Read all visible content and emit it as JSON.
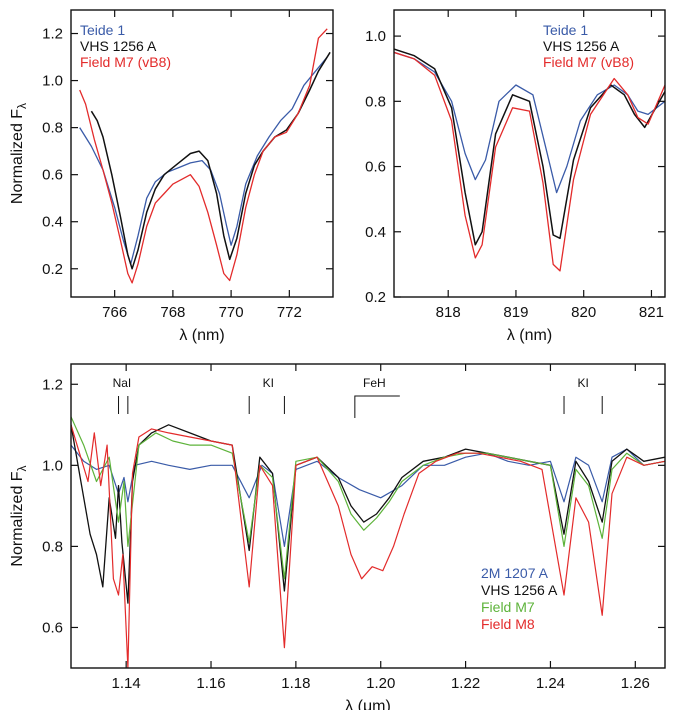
{
  "colors": {
    "teide": "#3a5ba8",
    "vhs": "#111111",
    "fieldM7_red": "#e32b2b",
    "twoM": "#3a5ba8",
    "fieldM7_green": "#5db33a",
    "fieldM8": "#e32b2b"
  },
  "chart_data": [
    {
      "type": "line",
      "panel": "top-left",
      "xlabel_prefix": "λ",
      "xlabel_unit": "(nm)",
      "ylabel_text": "Normalized F",
      "ylabel_sub": "λ",
      "xlim": [
        764.5,
        773.5
      ],
      "ylim": [
        0.08,
        1.3
      ],
      "xticks": [
        766,
        768,
        770,
        772
      ],
      "yticks": [
        0.2,
        0.4,
        0.6,
        0.8,
        1.0,
        1.2
      ],
      "xtick_labels": [
        "766",
        "768",
        "770",
        "772"
      ],
      "ytick_labels": [
        "0.2",
        "0.4",
        "0.6",
        "0.8",
        "1.0",
        "1.2"
      ],
      "legend_position": "top-left",
      "series": [
        {
          "name": "Teide 1",
          "color_key": "teide",
          "width": 1.3,
          "x": [
            764.8,
            765.2,
            765.6,
            766.0,
            766.3,
            766.55,
            766.8,
            767.1,
            767.4,
            767.8,
            768.2,
            768.6,
            769.0,
            769.3,
            769.6,
            769.85,
            770.0,
            770.2,
            770.5,
            770.9,
            771.3,
            771.7,
            772.1,
            772.5,
            772.9,
            773.3
          ],
          "y": [
            0.8,
            0.72,
            0.62,
            0.46,
            0.32,
            0.22,
            0.34,
            0.5,
            0.57,
            0.61,
            0.63,
            0.65,
            0.66,
            0.62,
            0.52,
            0.38,
            0.3,
            0.38,
            0.56,
            0.68,
            0.76,
            0.83,
            0.88,
            0.98,
            1.04,
            1.1
          ]
        },
        {
          "name": "VHS 1256 A",
          "color_key": "vhs",
          "width": 1.5,
          "x": [
            765.2,
            765.4,
            765.6,
            765.9,
            766.2,
            766.45,
            766.6,
            766.8,
            767.1,
            767.4,
            767.7,
            768.0,
            768.3,
            768.6,
            768.9,
            769.2,
            769.5,
            769.75,
            769.95,
            770.2,
            770.5,
            770.8,
            771.1,
            771.5,
            771.9,
            772.3,
            772.7,
            773.0,
            773.4
          ],
          "y": [
            0.87,
            0.83,
            0.76,
            0.6,
            0.42,
            0.26,
            0.2,
            0.28,
            0.44,
            0.54,
            0.6,
            0.63,
            0.66,
            0.69,
            0.7,
            0.66,
            0.52,
            0.34,
            0.24,
            0.33,
            0.52,
            0.64,
            0.7,
            0.76,
            0.79,
            0.86,
            0.96,
            1.04,
            1.12
          ]
        },
        {
          "name": "Field M7 (vB8)",
          "color_key": "fieldM7_red",
          "width": 1.3,
          "x": [
            764.8,
            765.0,
            765.3,
            765.6,
            765.9,
            766.2,
            766.45,
            766.6,
            766.8,
            767.1,
            767.4,
            767.7,
            768.0,
            768.3,
            768.6,
            768.9,
            769.2,
            769.5,
            769.75,
            769.95,
            770.2,
            770.5,
            770.8,
            771.1,
            771.5,
            771.9,
            772.3,
            772.7,
            773.0,
            773.3
          ],
          "y": [
            0.96,
            0.9,
            0.75,
            0.62,
            0.48,
            0.32,
            0.18,
            0.14,
            0.22,
            0.38,
            0.48,
            0.52,
            0.56,
            0.58,
            0.6,
            0.55,
            0.44,
            0.3,
            0.18,
            0.15,
            0.26,
            0.46,
            0.6,
            0.7,
            0.76,
            0.78,
            0.86,
            0.98,
            1.18,
            1.22
          ]
        }
      ]
    },
    {
      "type": "line",
      "panel": "top-right",
      "xlabel_prefix": "λ",
      "xlabel_unit": "(nm)",
      "xlim": [
        817.2,
        821.2
      ],
      "ylim": [
        0.2,
        1.08
      ],
      "xticks": [
        818,
        819,
        820,
        821
      ],
      "yticks": [
        0.2,
        0.4,
        0.6,
        0.8,
        1.0
      ],
      "xtick_labels": [
        "818",
        "819",
        "820",
        "821"
      ],
      "ytick_labels": [
        "0.2",
        "0.4",
        "0.6",
        "0.8",
        "1.0"
      ],
      "legend_position": "top-right",
      "series": [
        {
          "name": "Teide 1",
          "color_key": "teide",
          "width": 1.3,
          "x": [
            817.2,
            817.5,
            817.8,
            818.05,
            818.25,
            818.4,
            818.55,
            818.75,
            819.0,
            819.25,
            819.45,
            819.6,
            819.75,
            819.95,
            820.2,
            820.45,
            820.65,
            820.8,
            820.95,
            821.2
          ],
          "y": [
            0.95,
            0.93,
            0.89,
            0.8,
            0.64,
            0.56,
            0.62,
            0.8,
            0.85,
            0.82,
            0.65,
            0.52,
            0.6,
            0.74,
            0.82,
            0.85,
            0.82,
            0.77,
            0.76,
            0.8
          ]
        },
        {
          "name": "VHS 1256 A",
          "color_key": "vhs",
          "width": 1.5,
          "x": [
            817.2,
            817.5,
            817.8,
            818.05,
            818.25,
            818.4,
            818.5,
            818.7,
            818.95,
            819.2,
            819.4,
            819.55,
            819.65,
            819.85,
            820.1,
            820.4,
            820.6,
            820.75,
            820.9,
            821.2
          ],
          "y": [
            0.96,
            0.94,
            0.9,
            0.78,
            0.52,
            0.36,
            0.4,
            0.7,
            0.82,
            0.8,
            0.6,
            0.39,
            0.38,
            0.62,
            0.78,
            0.85,
            0.82,
            0.76,
            0.72,
            0.83
          ]
        },
        {
          "name": "Field M7 (vB8)",
          "color_key": "fieldM7_red",
          "width": 1.3,
          "x": [
            817.2,
            817.5,
            817.8,
            818.05,
            818.25,
            818.4,
            818.5,
            818.7,
            818.95,
            819.2,
            819.4,
            819.55,
            819.65,
            819.85,
            820.1,
            820.45,
            820.65,
            820.8,
            820.95,
            821.2
          ],
          "y": [
            0.95,
            0.93,
            0.88,
            0.74,
            0.45,
            0.32,
            0.36,
            0.66,
            0.78,
            0.77,
            0.55,
            0.3,
            0.28,
            0.56,
            0.76,
            0.87,
            0.82,
            0.75,
            0.73,
            0.85
          ]
        }
      ]
    },
    {
      "type": "line",
      "panel": "bottom",
      "xlabel_prefix": "λ",
      "xlabel_unit": "(μm)",
      "ylabel_text": "Normalized F",
      "ylabel_sub": "λ",
      "xlim": [
        1.127,
        1.267
      ],
      "ylim": [
        0.5,
        1.25
      ],
      "xticks": [
        1.14,
        1.16,
        1.18,
        1.2,
        1.22,
        1.24,
        1.26
      ],
      "yticks": [
        0.6,
        0.8,
        1.0,
        1.2
      ],
      "xtick_labels": [
        "1.14",
        "1.16",
        "1.18",
        "1.20",
        "1.22",
        "1.24",
        "1.26"
      ],
      "ytick_labels": [
        "0.6",
        "0.8",
        "1.0",
        "1.2"
      ],
      "legend_position": "bottom-right",
      "annotations": [
        {
          "text": "NaI",
          "x": 1.139,
          "ticks": [
            1.1382,
            1.1404
          ]
        },
        {
          "text": "KI",
          "x": 1.1735,
          "ticks": [
            1.169,
            1.1773
          ]
        },
        {
          "text": "FeH",
          "x": 1.1985,
          "bracket": [
            1.1939,
            1.2045
          ]
        },
        {
          "text": "KI",
          "x": 1.2477,
          "ticks": [
            1.2432,
            1.2522
          ]
        }
      ],
      "series": [
        {
          "name": "2M 1207 A",
          "color_key": "twoM",
          "width": 1.2,
          "x": [
            1.127,
            1.13,
            1.133,
            1.136,
            1.1382,
            1.1395,
            1.1404,
            1.142,
            1.146,
            1.15,
            1.155,
            1.16,
            1.165,
            1.169,
            1.172,
            1.1745,
            1.1773,
            1.18,
            1.185,
            1.19,
            1.195,
            1.2,
            1.205,
            1.21,
            1.215,
            1.22,
            1.225,
            1.23,
            1.235,
            1.24,
            1.2432,
            1.246,
            1.249,
            1.2522,
            1.2545,
            1.258,
            1.262,
            1.267
          ],
          "y": [
            1.05,
            1.01,
            0.99,
            1.0,
            0.93,
            0.97,
            0.91,
            1.0,
            1.01,
            1.0,
            0.99,
            1.0,
            1.0,
            0.92,
            1.0,
            0.98,
            0.8,
            0.99,
            1.01,
            0.97,
            0.94,
            0.92,
            0.95,
            1.0,
            1.0,
            1.02,
            1.03,
            1.01,
            1.0,
            1.01,
            0.91,
            1.02,
            1.0,
            0.91,
            1.02,
            1.04,
            1.0,
            1.01
          ]
        },
        {
          "name": "VHS 1256 A",
          "color_key": "vhs",
          "width": 1.3,
          "x": [
            1.127,
            1.1295,
            1.1315,
            1.133,
            1.1345,
            1.136,
            1.1375,
            1.1382,
            1.139,
            1.1404,
            1.1415,
            1.143,
            1.146,
            1.15,
            1.155,
            1.16,
            1.165,
            1.169,
            1.1715,
            1.1745,
            1.1773,
            1.18,
            1.185,
            1.19,
            1.193,
            1.196,
            1.199,
            1.202,
            1.205,
            1.21,
            1.215,
            1.22,
            1.225,
            1.23,
            1.235,
            1.24,
            1.2432,
            1.246,
            1.249,
            1.2522,
            1.2545,
            1.258,
            1.262,
            1.267
          ],
          "y": [
            1.1,
            0.95,
            0.83,
            0.78,
            0.7,
            0.92,
            0.82,
            0.95,
            0.81,
            0.66,
            0.96,
            1.05,
            1.08,
            1.1,
            1.08,
            1.06,
            1.05,
            0.79,
            1.02,
            0.98,
            0.69,
            1.0,
            1.02,
            0.97,
            0.9,
            0.86,
            0.88,
            0.92,
            0.97,
            1.01,
            1.02,
            1.04,
            1.03,
            1.02,
            1.01,
            1.0,
            0.83,
            1.01,
            0.96,
            0.86,
            1.01,
            1.04,
            1.01,
            1.02
          ]
        },
        {
          "name": "Field M7",
          "color_key": "fieldM7_green",
          "width": 1.2,
          "x": [
            1.127,
            1.13,
            1.133,
            1.136,
            1.1382,
            1.1395,
            1.1404,
            1.143,
            1.147,
            1.151,
            1.155,
            1.16,
            1.165,
            1.169,
            1.1715,
            1.1745,
            1.1773,
            1.18,
            1.185,
            1.19,
            1.193,
            1.196,
            1.199,
            1.202,
            1.205,
            1.21,
            1.215,
            1.22,
            1.225,
            1.23,
            1.235,
            1.24,
            1.2432,
            1.246,
            1.249,
            1.2522,
            1.2545,
            1.258,
            1.262,
            1.267
          ],
          "y": [
            1.12,
            1.05,
            0.96,
            1.02,
            0.86,
            0.96,
            0.8,
            1.05,
            1.08,
            1.06,
            1.05,
            1.05,
            1.03,
            0.81,
            1.0,
            0.97,
            0.72,
            1.01,
            1.02,
            0.96,
            0.88,
            0.84,
            0.87,
            0.91,
            0.96,
            1.0,
            1.02,
            1.03,
            1.03,
            1.02,
            1.01,
            1.0,
            0.8,
            0.99,
            0.95,
            0.82,
            0.99,
            1.03,
            1.0,
            1.01
          ]
        },
        {
          "name": "Field M8",
          "color_key": "fieldM8",
          "width": 1.2,
          "x": [
            1.127,
            1.129,
            1.131,
            1.1325,
            1.134,
            1.1355,
            1.137,
            1.1382,
            1.1392,
            1.1404,
            1.1415,
            1.143,
            1.146,
            1.15,
            1.155,
            1.16,
            1.165,
            1.169,
            1.1715,
            1.1745,
            1.1773,
            1.18,
            1.185,
            1.19,
            1.193,
            1.1955,
            1.198,
            1.2005,
            1.203,
            1.2055,
            1.209,
            1.213,
            1.218,
            1.223,
            1.228,
            1.233,
            1.238,
            1.2432,
            1.246,
            1.249,
            1.2522,
            1.2545,
            1.258,
            1.262,
            1.267
          ],
          "y": [
            1.1,
            1.03,
            0.96,
            1.08,
            0.95,
            1.05,
            0.72,
            0.68,
            0.78,
            0.5,
            0.98,
            1.07,
            1.09,
            1.08,
            1.07,
            1.06,
            1.05,
            0.7,
            1.0,
            0.95,
            0.55,
            1.0,
            1.02,
            0.9,
            0.78,
            0.72,
            0.75,
            0.74,
            0.8,
            0.88,
            0.98,
            1.01,
            1.03,
            1.03,
            1.02,
            1.01,
            0.99,
            0.68,
            0.92,
            0.86,
            0.63,
            0.93,
            1.02,
            1.0,
            1.01
          ]
        }
      ]
    }
  ]
}
